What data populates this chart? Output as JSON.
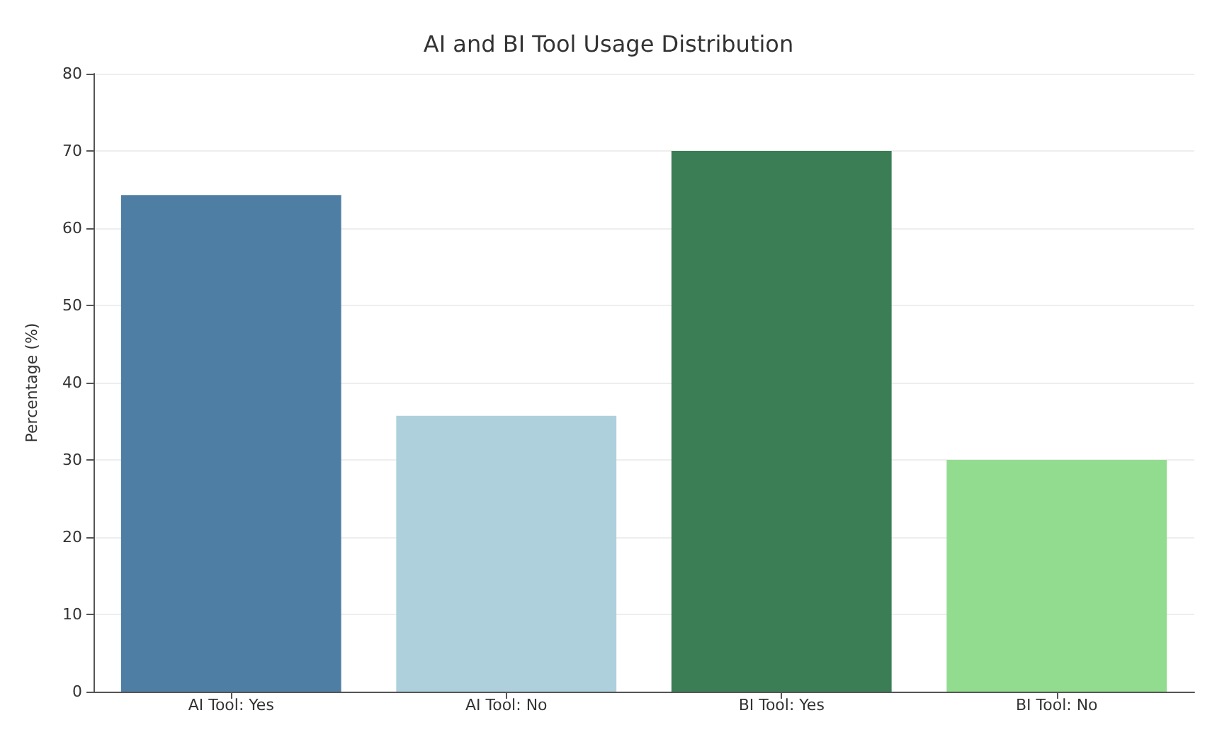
{
  "chart_data": {
    "type": "bar",
    "title": "AI and BI Tool Usage Distribution",
    "ylabel": "Percentage (%)",
    "categories": [
      "AI Tool: Yes",
      "AI Tool: No",
      "BI Tool: Yes",
      "BI Tool: No"
    ],
    "values": [
      64.3,
      35.7,
      70,
      30
    ],
    "colors": [
      "#4f7ea5",
      "#aed0dd",
      "#3b7d55",
      "#92dc8f"
    ],
    "ylim": [
      0,
      80
    ],
    "yticks": [
      0,
      10,
      20,
      30,
      40,
      50,
      60,
      70,
      80
    ],
    "grid": "y"
  }
}
